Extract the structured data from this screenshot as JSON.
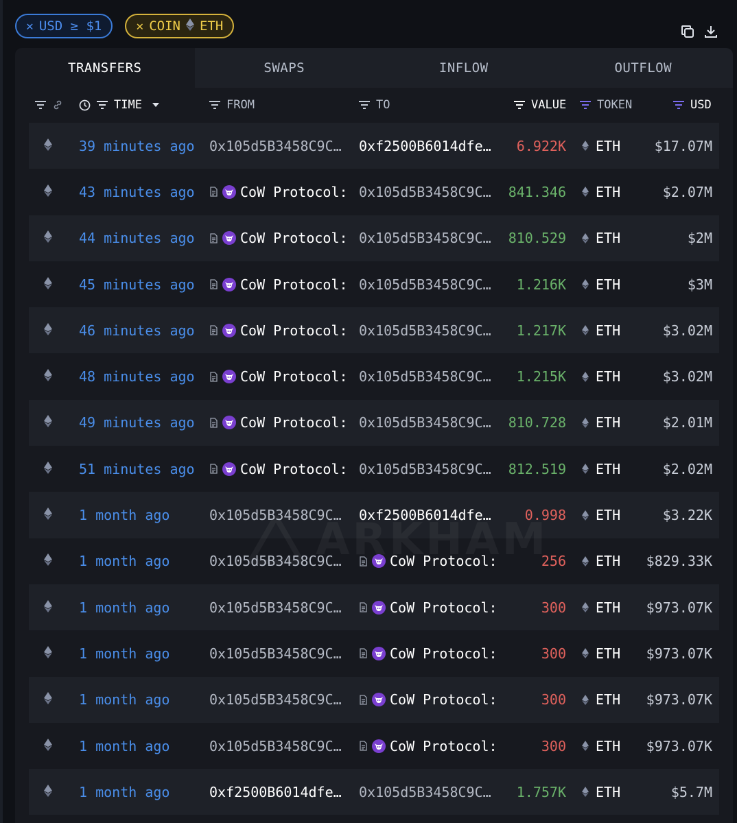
{
  "filters": {
    "usd_chip": {
      "label": "USD ≥ $1",
      "icon": "close-icon"
    },
    "coin_chip": {
      "prefix": "COIN",
      "token": "ETH",
      "icon": "close-icon"
    }
  },
  "top_actions": [
    {
      "name": "copy-icon"
    },
    {
      "name": "download-icon"
    }
  ],
  "tabs": [
    {
      "label": "TRANSFERS",
      "active": true
    },
    {
      "label": "SWAPS",
      "active": false
    },
    {
      "label": "INFLOW",
      "active": false
    },
    {
      "label": "OUTFLOW",
      "active": false
    }
  ],
  "columns": {
    "time": "TIME",
    "from": "FROM",
    "to": "TO",
    "value": "VALUE",
    "token": "TOKEN",
    "usd": "USD"
  },
  "colors": {
    "accent_blue": "#4a8eea",
    "accent_purple": "#7b6cf0",
    "positive": "#6ab26a",
    "negative": "#e0615c",
    "chip_yellow": "#f2cf4a"
  },
  "watermark": "ARKHAM",
  "rows": [
    {
      "time": "39 minutes ago",
      "from": {
        "type": "addr",
        "text": "0x105d5B3458C9C…",
        "tone": "gray"
      },
      "to": {
        "type": "addr",
        "text": "0xf2500B6014dfe…",
        "tone": "white"
      },
      "value": "6.922K",
      "value_tone": "red",
      "token": "ETH",
      "usd": "$17.07M"
    },
    {
      "time": "43 minutes ago",
      "from": {
        "type": "entity",
        "text": "CoW Protocol:"
      },
      "to": {
        "type": "addr",
        "text": "0x105d5B3458C9C…",
        "tone": "gray"
      },
      "value": "841.346",
      "value_tone": "green",
      "token": "ETH",
      "usd": "$2.07M"
    },
    {
      "time": "44 minutes ago",
      "from": {
        "type": "entity",
        "text": "CoW Protocol:"
      },
      "to": {
        "type": "addr",
        "text": "0x105d5B3458C9C…",
        "tone": "gray"
      },
      "value": "810.529",
      "value_tone": "green",
      "token": "ETH",
      "usd": "$2M"
    },
    {
      "time": "45 minutes ago",
      "from": {
        "type": "entity",
        "text": "CoW Protocol:"
      },
      "to": {
        "type": "addr",
        "text": "0x105d5B3458C9C…",
        "tone": "gray"
      },
      "value": "1.216K",
      "value_tone": "green",
      "token": "ETH",
      "usd": "$3M"
    },
    {
      "time": "46 minutes ago",
      "from": {
        "type": "entity",
        "text": "CoW Protocol:"
      },
      "to": {
        "type": "addr",
        "text": "0x105d5B3458C9C…",
        "tone": "gray"
      },
      "value": "1.217K",
      "value_tone": "green",
      "token": "ETH",
      "usd": "$3.02M"
    },
    {
      "time": "48 minutes ago",
      "from": {
        "type": "entity",
        "text": "CoW Protocol:"
      },
      "to": {
        "type": "addr",
        "text": "0x105d5B3458C9C…",
        "tone": "gray"
      },
      "value": "1.215K",
      "value_tone": "green",
      "token": "ETH",
      "usd": "$3.02M"
    },
    {
      "time": "49 minutes ago",
      "from": {
        "type": "entity",
        "text": "CoW Protocol:"
      },
      "to": {
        "type": "addr",
        "text": "0x105d5B3458C9C…",
        "tone": "gray"
      },
      "value": "810.728",
      "value_tone": "green",
      "token": "ETH",
      "usd": "$2.01M"
    },
    {
      "time": "51 minutes ago",
      "from": {
        "type": "entity",
        "text": "CoW Protocol:"
      },
      "to": {
        "type": "addr",
        "text": "0x105d5B3458C9C…",
        "tone": "gray"
      },
      "value": "812.519",
      "value_tone": "green",
      "token": "ETH",
      "usd": "$2.02M"
    },
    {
      "time": "1 month ago",
      "from": {
        "type": "addr",
        "text": "0x105d5B3458C9C…",
        "tone": "gray"
      },
      "to": {
        "type": "addr",
        "text": "0xf2500B6014dfe…",
        "tone": "white"
      },
      "value": "0.998",
      "value_tone": "red",
      "token": "ETH",
      "usd": "$3.22K"
    },
    {
      "time": "1 month ago",
      "from": {
        "type": "addr",
        "text": "0x105d5B3458C9C…",
        "tone": "gray"
      },
      "to": {
        "type": "entity",
        "text": "CoW Protocol:"
      },
      "value": "256",
      "value_tone": "red",
      "token": "ETH",
      "usd": "$829.33K"
    },
    {
      "time": "1 month ago",
      "from": {
        "type": "addr",
        "text": "0x105d5B3458C9C…",
        "tone": "gray"
      },
      "to": {
        "type": "entity",
        "text": "CoW Protocol:"
      },
      "value": "300",
      "value_tone": "red",
      "token": "ETH",
      "usd": "$973.07K"
    },
    {
      "time": "1 month ago",
      "from": {
        "type": "addr",
        "text": "0x105d5B3458C9C…",
        "tone": "gray"
      },
      "to": {
        "type": "entity",
        "text": "CoW Protocol:"
      },
      "value": "300",
      "value_tone": "red",
      "token": "ETH",
      "usd": "$973.07K"
    },
    {
      "time": "1 month ago",
      "from": {
        "type": "addr",
        "text": "0x105d5B3458C9C…",
        "tone": "gray"
      },
      "to": {
        "type": "entity",
        "text": "CoW Protocol:"
      },
      "value": "300",
      "value_tone": "red",
      "token": "ETH",
      "usd": "$973.07K"
    },
    {
      "time": "1 month ago",
      "from": {
        "type": "addr",
        "text": "0x105d5B3458C9C…",
        "tone": "gray"
      },
      "to": {
        "type": "entity",
        "text": "CoW Protocol:"
      },
      "value": "300",
      "value_tone": "red",
      "token": "ETH",
      "usd": "$973.07K"
    },
    {
      "time": "1 month ago",
      "from": {
        "type": "addr",
        "text": "0xf2500B6014dfe…",
        "tone": "white"
      },
      "to": {
        "type": "addr",
        "text": "0x105d5B3458C9C…",
        "tone": "gray"
      },
      "value": "1.757K",
      "value_tone": "green",
      "token": "ETH",
      "usd": "$5.7M"
    }
  ]
}
